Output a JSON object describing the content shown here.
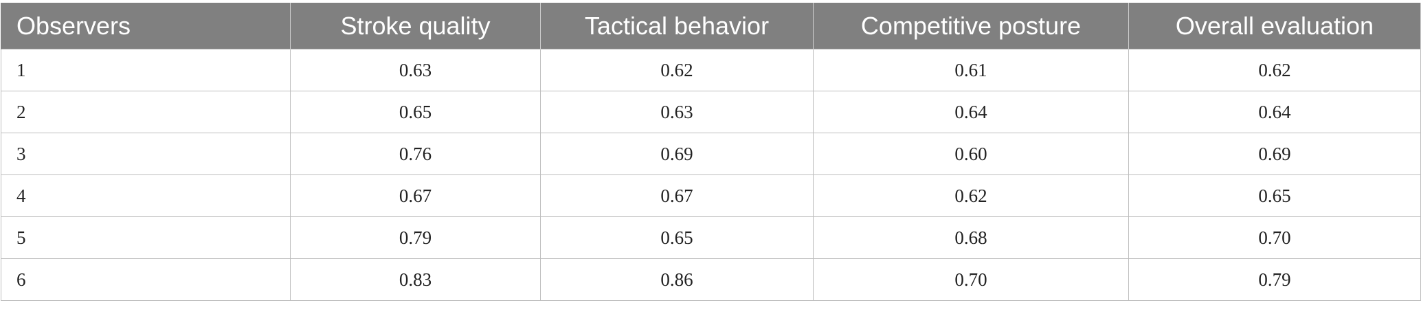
{
  "table": {
    "headers": [
      "Observers",
      "Stroke quality",
      "Tactical behavior",
      "Competitive posture",
      "Overall evaluation"
    ],
    "rows": [
      [
        "1",
        "0.63",
        "0.62",
        "0.61",
        "0.62"
      ],
      [
        "2",
        "0.65",
        "0.63",
        "0.64",
        "0.64"
      ],
      [
        "3",
        "0.76",
        "0.69",
        "0.60",
        "0.69"
      ],
      [
        "4",
        "0.67",
        "0.67",
        "0.62",
        "0.65"
      ],
      [
        "5",
        "0.79",
        "0.65",
        "0.68",
        "0.70"
      ],
      [
        "6",
        "0.83",
        "0.86",
        "0.70",
        "0.79"
      ]
    ]
  },
  "colors": {
    "header_bg": "#808080",
    "header_text": "#ffffff",
    "grid": "#bdbdbd"
  }
}
